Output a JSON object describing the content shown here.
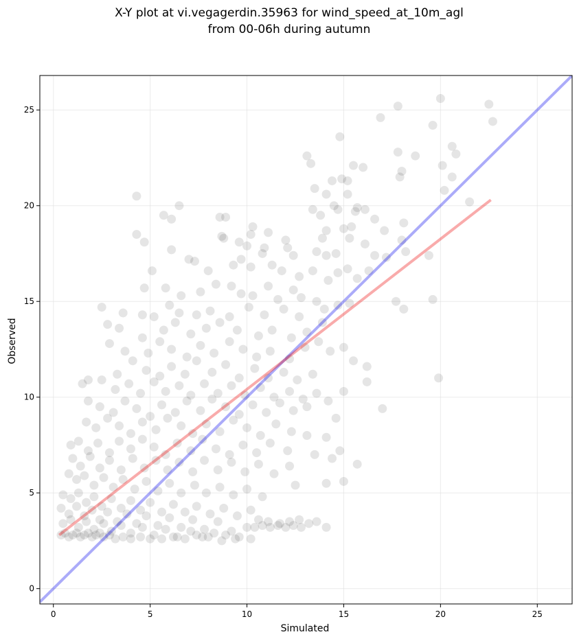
{
  "chart_data": {
    "type": "scatter",
    "title": {
      "line1": "X-Y plot at vi.vegagerdin.35963 for wind_speed_at_10m_agl",
      "line2": "from 00-06h during autumn"
    },
    "xlabel": "Simulated",
    "ylabel": "Observed",
    "xlim": [
      -0.7,
      26.8
    ],
    "ylim": [
      -0.8,
      26.8
    ],
    "x_ticks": [
      {
        "value": 0,
        "label": "0"
      },
      {
        "value": 5,
        "label": "5"
      },
      {
        "value": 10,
        "label": "10"
      },
      {
        "value": 15,
        "label": "15"
      },
      {
        "value": 20,
        "label": "20"
      },
      {
        "value": 25,
        "label": "25"
      }
    ],
    "y_ticks": [
      {
        "value": 0,
        "label": "0"
      },
      {
        "value": 5,
        "label": "5"
      },
      {
        "value": 10,
        "label": "10"
      },
      {
        "value": 15,
        "label": "15"
      },
      {
        "value": 20,
        "label": "20"
      },
      {
        "value": 25,
        "label": "25"
      }
    ],
    "grid": true,
    "colors": {
      "points": "#000000",
      "identity_line": "#0000ee",
      "regression_line": "#ee0000",
      "grid": "#dddddd"
    },
    "identity_line": {
      "x": [
        -0.7,
        26.8
      ],
      "y": [
        -0.7,
        26.8
      ]
    },
    "regression_line": {
      "x": [
        0.3,
        22.6
      ],
      "y": [
        2.8,
        20.3
      ]
    },
    "points": [
      [
        20.0,
        25.6
      ],
      [
        22.5,
        25.3
      ],
      [
        22.7,
        24.4
      ],
      [
        17.8,
        25.2
      ],
      [
        19.6,
        24.2
      ],
      [
        16.9,
        24.6
      ],
      [
        14.8,
        23.6
      ],
      [
        13.1,
        22.6
      ],
      [
        13.3,
        22.2
      ],
      [
        17.8,
        22.8
      ],
      [
        18.7,
        22.6
      ],
      [
        20.6,
        23.1
      ],
      [
        20.8,
        22.7
      ],
      [
        15.5,
        22.1
      ],
      [
        16.0,
        22.0
      ],
      [
        18.0,
        21.8
      ],
      [
        17.9,
        21.5
      ],
      [
        20.1,
        22.1
      ],
      [
        20.6,
        21.5
      ],
      [
        14.4,
        21.3
      ],
      [
        14.9,
        21.4
      ],
      [
        15.2,
        21.3
      ],
      [
        15.2,
        20.6
      ],
      [
        13.5,
        20.9
      ],
      [
        14.1,
        20.6
      ],
      [
        14.5,
        20.0
      ],
      [
        14.7,
        19.8
      ],
      [
        15.7,
        19.9
      ],
      [
        15.6,
        19.7
      ],
      [
        16.1,
        19.8
      ],
      [
        20.2,
        20.8
      ],
      [
        21.5,
        20.2
      ],
      [
        4.3,
        20.5
      ],
      [
        6.5,
        20.0
      ],
      [
        5.7,
        19.5
      ],
      [
        6.1,
        19.3
      ],
      [
        8.6,
        19.4
      ],
      [
        8.9,
        19.4
      ],
      [
        10.3,
        18.9
      ],
      [
        10.2,
        18.5
      ],
      [
        11.1,
        18.6
      ],
      [
        8.7,
        18.4
      ],
      [
        8.8,
        18.3
      ],
      [
        4.3,
        18.5
      ],
      [
        4.7,
        18.1
      ],
      [
        13.4,
        19.8
      ],
      [
        13.8,
        19.5
      ],
      [
        14.1,
        18.7
      ],
      [
        13.9,
        18.3
      ],
      [
        15.0,
        18.8
      ],
      [
        15.4,
        18.9
      ],
      [
        16.6,
        19.3
      ],
      [
        18.1,
        19.1
      ],
      [
        17.1,
        18.7
      ],
      [
        18.0,
        18.2
      ],
      [
        19.4,
        17.4
      ],
      [
        9.6,
        18.1
      ],
      [
        10.0,
        17.9
      ],
      [
        10.9,
        17.8
      ],
      [
        10.8,
        17.5
      ],
      [
        12.0,
        18.2
      ],
      [
        12.1,
        17.8
      ],
      [
        12.4,
        17.4
      ],
      [
        13.6,
        17.6
      ],
      [
        14.1,
        17.4
      ],
      [
        14.6,
        17.5
      ],
      [
        15.3,
        18.3
      ],
      [
        16.1,
        18.0
      ],
      [
        16.6,
        17.4
      ],
      [
        17.2,
        17.3
      ],
      [
        18.2,
        17.6
      ],
      [
        6.1,
        17.7
      ],
      [
        7.0,
        17.2
      ],
      [
        7.3,
        17.1
      ],
      [
        8.0,
        16.6
      ],
      [
        9.3,
        16.9
      ],
      [
        9.7,
        17.2
      ],
      [
        10.2,
        16.8
      ],
      [
        11.3,
        16.9
      ],
      [
        11.8,
        16.6
      ],
      [
        12.7,
        16.3
      ],
      [
        13.4,
        16.6
      ],
      [
        14.2,
        16.1
      ],
      [
        14.7,
        16.5
      ],
      [
        15.2,
        16.7
      ],
      [
        15.7,
        16.2
      ],
      [
        16.3,
        16.6
      ],
      [
        5.1,
        16.6
      ],
      [
        5.8,
        15.7
      ],
      [
        4.7,
        15.7
      ],
      [
        6.6,
        15.3
      ],
      [
        7.6,
        15.5
      ],
      [
        8.4,
        15.9
      ],
      [
        9.2,
        15.8
      ],
      [
        9.7,
        15.4
      ],
      [
        10.3,
        15.3
      ],
      [
        11.1,
        15.8
      ],
      [
        11.6,
        15.1
      ],
      [
        12.4,
        15.6
      ],
      [
        12.8,
        15.2
      ],
      [
        13.6,
        15.0
      ],
      [
        14.0,
        14.6
      ],
      [
        14.7,
        14.8
      ],
      [
        15.3,
        14.9
      ],
      [
        17.7,
        15.0
      ],
      [
        18.1,
        14.6
      ],
      [
        19.6,
        15.1
      ],
      [
        2.5,
        14.7
      ],
      [
        3.6,
        14.4
      ],
      [
        4.6,
        14.3
      ],
      [
        5.2,
        14.2
      ],
      [
        6.0,
        14.8
      ],
      [
        6.5,
        14.4
      ],
      [
        7.4,
        14.3
      ],
      [
        8.1,
        14.5
      ],
      [
        9.1,
        14.2
      ],
      [
        10.1,
        14.7
      ],
      [
        10.9,
        14.3
      ],
      [
        11.9,
        14.6
      ],
      [
        12.7,
        14.2
      ],
      [
        13.9,
        13.9
      ],
      [
        2.8,
        13.8
      ],
      [
        3.4,
        13.6
      ],
      [
        4.6,
        13.1
      ],
      [
        5.7,
        13.5
      ],
      [
        6.3,
        13.9
      ],
      [
        7.1,
        13.3
      ],
      [
        7.9,
        13.6
      ],
      [
        8.6,
        13.9
      ],
      [
        9.5,
        13.5
      ],
      [
        10.6,
        13.2
      ],
      [
        11.3,
        13.5
      ],
      [
        12.3,
        13.1
      ],
      [
        13.1,
        13.4
      ],
      [
        13.7,
        12.9
      ],
      [
        14.3,
        12.4
      ],
      [
        15.0,
        12.6
      ],
      [
        2.9,
        12.8
      ],
      [
        3.7,
        12.4
      ],
      [
        4.9,
        12.3
      ],
      [
        5.5,
        12.9
      ],
      [
        6.1,
        12.5
      ],
      [
        6.9,
        12.1
      ],
      [
        7.6,
        12.7
      ],
      [
        8.3,
        12.3
      ],
      [
        9.1,
        12.9
      ],
      [
        9.8,
        12.5
      ],
      [
        10.5,
        12.1
      ],
      [
        11.2,
        12.4
      ],
      [
        12.2,
        12.0
      ],
      [
        13.0,
        12.6
      ],
      [
        15.5,
        11.9
      ],
      [
        16.2,
        11.6
      ],
      [
        3.3,
        11.2
      ],
      [
        4.1,
        11.9
      ],
      [
        4.8,
        11.4
      ],
      [
        5.5,
        11.1
      ],
      [
        6.1,
        11.6
      ],
      [
        6.8,
        11.2
      ],
      [
        7.4,
        11.9
      ],
      [
        8.2,
        11.3
      ],
      [
        8.9,
        11.7
      ],
      [
        9.6,
        11.0
      ],
      [
        10.4,
        11.5
      ],
      [
        11.1,
        11.0
      ],
      [
        11.9,
        11.3
      ],
      [
        12.6,
        10.9
      ],
      [
        13.4,
        11.2
      ],
      [
        1.5,
        10.7
      ],
      [
        1.8,
        10.9
      ],
      [
        2.5,
        10.9
      ],
      [
        3.2,
        10.4
      ],
      [
        3.9,
        10.7
      ],
      [
        4.5,
        10.2
      ],
      [
        5.2,
        10.8
      ],
      [
        5.8,
        10.3
      ],
      [
        6.5,
        10.6
      ],
      [
        7.1,
        10.1
      ],
      [
        7.8,
        10.7
      ],
      [
        8.5,
        10.2
      ],
      [
        9.2,
        10.6
      ],
      [
        9.9,
        10.1
      ],
      [
        10.7,
        10.5
      ],
      [
        11.4,
        10.0
      ],
      [
        12.2,
        10.3
      ],
      [
        12.9,
        9.9
      ],
      [
        13.6,
        10.2
      ],
      [
        15.0,
        10.3
      ],
      [
        16.2,
        10.8
      ],
      [
        19.9,
        11.0
      ],
      [
        1.8,
        9.8
      ],
      [
        2.4,
        9.5
      ],
      [
        3.1,
        9.2
      ],
      [
        3.7,
        9.8
      ],
      [
        4.3,
        9.4
      ],
      [
        5.0,
        9.0
      ],
      [
        5.6,
        9.6
      ],
      [
        6.3,
        9.2
      ],
      [
        6.9,
        9.8
      ],
      [
        7.6,
        9.3
      ],
      [
        8.2,
        9.9
      ],
      [
        8.9,
        9.5
      ],
      [
        9.6,
        9.1
      ],
      [
        10.3,
        9.6
      ],
      [
        11.0,
        9.2
      ],
      [
        11.7,
        9.7
      ],
      [
        12.4,
        9.3
      ],
      [
        13.1,
        9.5
      ],
      [
        14.2,
        9.8
      ],
      [
        14.6,
        8.9
      ],
      [
        17.0,
        9.4
      ],
      [
        1.7,
        8.7
      ],
      [
        2.2,
        8.4
      ],
      [
        2.8,
        8.9
      ],
      [
        3.4,
        8.5
      ],
      [
        4.0,
        8.1
      ],
      [
        4.6,
        8.7
      ],
      [
        5.3,
        8.3
      ],
      [
        5.9,
        8.9
      ],
      [
        6.6,
        8.5
      ],
      [
        7.2,
        8.1
      ],
      [
        7.9,
        8.6
      ],
      [
        8.6,
        8.2
      ],
      [
        9.3,
        8.8
      ],
      [
        10.0,
        8.4
      ],
      [
        10.7,
        8.0
      ],
      [
        11.5,
        8.6
      ],
      [
        12.3,
        8.2
      ],
      [
        13.1,
        8.0
      ],
      [
        14.1,
        7.9
      ],
      [
        0.9,
        7.5
      ],
      [
        1.3,
        7.7
      ],
      [
        1.8,
        7.2
      ],
      [
        2.3,
        7.6
      ],
      [
        2.9,
        7.1
      ],
      [
        3.4,
        7.7
      ],
      [
        4.0,
        7.3
      ],
      [
        4.6,
        7.8
      ],
      [
        5.2,
        7.4
      ],
      [
        5.8,
        7.0
      ],
      [
        6.4,
        7.6
      ],
      [
        7.1,
        7.2
      ],
      [
        7.7,
        7.8
      ],
      [
        8.4,
        7.3
      ],
      [
        9.1,
        7.0
      ],
      [
        9.8,
        7.5
      ],
      [
        10.5,
        7.1
      ],
      [
        11.2,
        7.6
      ],
      [
        12.1,
        7.2
      ],
      [
        13.5,
        7.0
      ],
      [
        14.8,
        7.2
      ],
      [
        1.0,
        6.8
      ],
      [
        1.4,
        6.4
      ],
      [
        1.9,
        6.9
      ],
      [
        2.4,
        6.3
      ],
      [
        2.9,
        6.7
      ],
      [
        3.5,
        6.2
      ],
      [
        4.1,
        6.8
      ],
      [
        4.7,
        6.3
      ],
      [
        5.3,
        6.7
      ],
      [
        5.9,
        6.2
      ],
      [
        6.5,
        6.6
      ],
      [
        7.2,
        6.1
      ],
      [
        7.8,
        6.7
      ],
      [
        8.5,
        6.2
      ],
      [
        9.2,
        6.6
      ],
      [
        9.9,
        6.1
      ],
      [
        10.6,
        6.5
      ],
      [
        11.4,
        6.0
      ],
      [
        12.2,
        6.4
      ],
      [
        14.4,
        6.8
      ],
      [
        15.7,
        6.5
      ],
      [
        0.8,
        6.0
      ],
      [
        1.2,
        5.7
      ],
      [
        1.6,
        5.9
      ],
      [
        2.1,
        5.4
      ],
      [
        2.6,
        5.8
      ],
      [
        3.1,
        5.3
      ],
      [
        3.6,
        5.7
      ],
      [
        4.2,
        5.2
      ],
      [
        4.8,
        5.6
      ],
      [
        5.4,
        5.1
      ],
      [
        6.0,
        5.5
      ],
      [
        6.6,
        5.0
      ],
      [
        7.3,
        5.4
      ],
      [
        7.9,
        5.0
      ],
      [
        8.6,
        5.3
      ],
      [
        9.3,
        4.9
      ],
      [
        10.0,
        5.2
      ],
      [
        10.8,
        4.8
      ],
      [
        12.5,
        5.4
      ],
      [
        14.1,
        5.5
      ],
      [
        15.0,
        5.6
      ],
      [
        0.5,
        4.9
      ],
      [
        0.9,
        4.7
      ],
      [
        1.3,
        5.0
      ],
      [
        1.7,
        4.5
      ],
      [
        2.1,
        4.8
      ],
      [
        2.5,
        4.3
      ],
      [
        3.0,
        4.7
      ],
      [
        3.5,
        4.2
      ],
      [
        4.0,
        4.6
      ],
      [
        4.5,
        4.1
      ],
      [
        5.0,
        4.5
      ],
      [
        5.6,
        4.0
      ],
      [
        6.2,
        4.4
      ],
      [
        6.8,
        4.0
      ],
      [
        7.4,
        4.3
      ],
      [
        8.1,
        3.9
      ],
      [
        8.8,
        4.2
      ],
      [
        9.5,
        3.8
      ],
      [
        10.2,
        4.1
      ],
      [
        0.4,
        4.2
      ],
      [
        0.8,
        3.9
      ],
      [
        1.2,
        4.3
      ],
      [
        1.6,
        3.8
      ],
      [
        2.0,
        4.1
      ],
      [
        2.4,
        3.6
      ],
      [
        2.8,
        4.0
      ],
      [
        3.3,
        3.5
      ],
      [
        3.8,
        3.9
      ],
      [
        4.3,
        3.4
      ],
      [
        4.8,
        3.8
      ],
      [
        5.4,
        3.3
      ],
      [
        6.0,
        3.7
      ],
      [
        6.6,
        3.2
      ],
      [
        7.2,
        3.6
      ],
      [
        7.8,
        3.1
      ],
      [
        8.5,
        3.5
      ],
      [
        9.2,
        3.0
      ],
      [
        0.5,
        3.4
      ],
      [
        0.9,
        3.6
      ],
      [
        1.3,
        3.2
      ],
      [
        1.7,
        3.5
      ],
      [
        2.1,
        3.1
      ],
      [
        2.6,
        3.4
      ],
      [
        3.0,
        3.0
      ],
      [
        3.5,
        3.3
      ],
      [
        4.0,
        2.9
      ],
      [
        4.6,
        3.2
      ],
      [
        5.2,
        2.8
      ],
      [
        5.8,
        3.1
      ],
      [
        6.4,
        2.7
      ],
      [
        7.1,
        3.0
      ],
      [
        7.7,
        2.7
      ],
      [
        8.3,
        2.9
      ],
      [
        8.9,
        2.8
      ],
      [
        9.6,
        2.7
      ],
      [
        10.2,
        2.6
      ],
      [
        0.4,
        2.8
      ],
      [
        0.6,
        2.9
      ],
      [
        0.8,
        2.7
      ],
      [
        1.0,
        2.8
      ],
      [
        1.2,
        2.9
      ],
      [
        1.4,
        2.7
      ],
      [
        1.6,
        2.8
      ],
      [
        1.8,
        2.9
      ],
      [
        2.0,
        2.7
      ],
      [
        2.2,
        2.8
      ],
      [
        2.4,
        2.9
      ],
      [
        2.6,
        2.7
      ],
      [
        2.9,
        2.8
      ],
      [
        3.2,
        2.6
      ],
      [
        3.6,
        2.7
      ],
      [
        4.0,
        2.6
      ],
      [
        4.5,
        2.7
      ],
      [
        5.0,
        2.6
      ],
      [
        5.6,
        2.6
      ],
      [
        6.2,
        2.7
      ],
      [
        6.8,
        2.6
      ],
      [
        7.4,
        2.8
      ],
      [
        8.0,
        2.7
      ],
      [
        8.7,
        2.5
      ],
      [
        9.4,
        2.6
      ],
      [
        10.0,
        3.2
      ],
      [
        10.4,
        3.2
      ],
      [
        10.8,
        3.3
      ],
      [
        11.2,
        3.2
      ],
      [
        11.6,
        3.3
      ],
      [
        12.0,
        3.2
      ],
      [
        12.4,
        3.3
      ],
      [
        12.8,
        3.2
      ],
      [
        13.2,
        3.4
      ],
      [
        13.6,
        3.5
      ],
      [
        14.1,
        3.2
      ],
      [
        10.6,
        3.6
      ],
      [
        11.1,
        3.5
      ],
      [
        11.7,
        3.4
      ],
      [
        12.2,
        3.5
      ],
      [
        12.7,
        3.6
      ]
    ]
  }
}
